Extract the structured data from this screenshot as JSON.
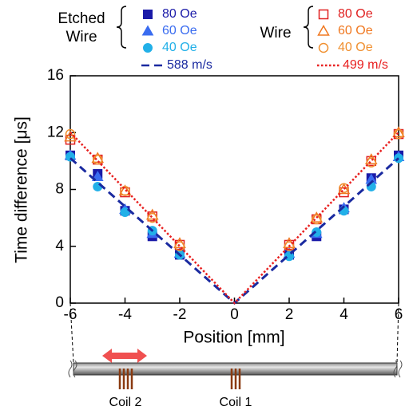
{
  "chart_data": {
    "type": "scatter",
    "xlabel": "Position [mm]",
    "ylabel": "Time difference [μs]",
    "legend_groups": [
      "Etched Wire",
      "Wire"
    ],
    "x": [
      -6,
      -5,
      -4,
      -3,
      -2,
      2,
      3,
      4,
      5,
      6
    ],
    "xlim": [
      -6,
      6
    ],
    "xticks": [
      -6,
      -4,
      -2,
      0,
      2,
      4,
      6
    ],
    "ylim": [
      0,
      16
    ],
    "yticks": [
      0,
      4,
      8,
      12,
      16
    ],
    "series": [
      {
        "name": "80 Oe",
        "color": "#1a1aa8",
        "marker": "square",
        "filled": true,
        "values": [
          10.4,
          9.1,
          6.5,
          4.7,
          3.4,
          3.4,
          4.7,
          6.6,
          8.8,
          10.4
        ]
      },
      {
        "name": "60 Oe",
        "color": "#3a6cf0",
        "marker": "triangle",
        "filled": true,
        "values": [
          10.4,
          8.9,
          6.6,
          4.9,
          3.5,
          3.5,
          4.9,
          6.7,
          8.7,
          10.3
        ]
      },
      {
        "name": "40 Oe",
        "color": "#22b0e8",
        "marker": "circle",
        "filled": true,
        "values": [
          10.3,
          8.2,
          6.4,
          5.1,
          3.4,
          3.3,
          5.0,
          6.5,
          8.2,
          10.2
        ]
      },
      {
        "name": "588 m/s",
        "type": "line",
        "dash": "dashed",
        "color": "#1a2aa0",
        "x": [
          -6,
          0,
          6
        ],
        "values": [
          10.2,
          0,
          10.2
        ]
      },
      {
        "name": "80 Oe",
        "color": "#e02020",
        "marker": "square",
        "filled": false,
        "values": [
          11.5,
          10.1,
          7.8,
          6.1,
          4.1,
          4.1,
          5.9,
          7.8,
          10.0,
          11.9
        ]
      },
      {
        "name": "60 Oe",
        "color": "#f07820",
        "marker": "triangle",
        "filled": false,
        "values": [
          11.7,
          10.2,
          7.9,
          6.2,
          4.2,
          4.2,
          6.0,
          8.0,
          10.1,
          12.0
        ]
      },
      {
        "name": "40 Oe",
        "color": "#f09030",
        "marker": "circle",
        "filled": false,
        "values": [
          11.9,
          10.1,
          7.9,
          6.0,
          4.0,
          4.0,
          5.9,
          8.1,
          9.9,
          11.9
        ]
      },
      {
        "name": "499 m/s",
        "type": "line",
        "dash": "dotted",
        "color": "#e82020",
        "x": [
          -6,
          0,
          6
        ],
        "values": [
          12.02,
          0,
          12.02
        ]
      }
    ]
  },
  "diagram": {
    "coils": [
      "Coil 2",
      "Coil 1"
    ]
  }
}
